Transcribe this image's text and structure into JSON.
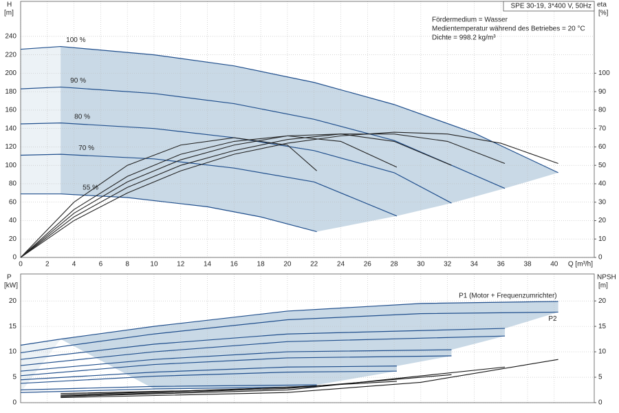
{
  "chart_data": [
    {
      "type": "line",
      "y_label": "H",
      "y_unit": "[m]",
      "y2_label": "eta",
      "y2_unit": "[%]",
      "x_label": "Q [m³/h]",
      "annotations": [
        "SPE 30-19, 3*400 V, 50Hz",
        "Fördermedium = Wasser",
        "Medientemperatur während des Betriebes = 20 °C",
        "Dichte = 998.2 kg/m³"
      ],
      "xlim": [
        0,
        43
      ],
      "xticks": [
        0,
        2,
        4,
        6,
        8,
        10,
        12,
        14,
        16,
        18,
        20,
        22,
        24,
        26,
        28,
        30,
        32,
        34,
        36,
        38,
        40
      ],
      "ylim": [
        0,
        278
      ],
      "yticks": [
        0,
        20,
        40,
        60,
        80,
        100,
        120,
        140,
        160,
        180,
        200,
        220,
        240
      ],
      "y2lim": [
        0,
        139
      ],
      "y2ticks": [
        0,
        10,
        20,
        30,
        40,
        50,
        60,
        70,
        80,
        90,
        100
      ],
      "grid": true,
      "fill_color": "#c9d9e6",
      "series": [
        {
          "name": "100 %",
          "color": "#1f4e8c",
          "x": [
            0,
            3,
            10,
            16,
            22,
            28,
            34,
            40.3
          ],
          "values": [
            226,
            229,
            220,
            208,
            190,
            166,
            135,
            92
          ]
        },
        {
          "name": "90 %",
          "color": "#1f4e8c",
          "x": [
            0,
            3,
            10,
            16,
            22,
            28,
            36.3
          ],
          "values": [
            183,
            185,
            178,
            167,
            150,
            127,
            75
          ]
        },
        {
          "name": "80 %",
          "color": "#1f4e8c",
          "x": [
            0,
            3,
            10,
            16,
            22,
            28,
            32.3
          ],
          "values": [
            145,
            146,
            140,
            130,
            116,
            92,
            59
          ]
        },
        {
          "name": "70 %",
          "color": "#1f4e8c",
          "x": [
            0,
            3,
            10,
            16,
            22,
            28.2
          ],
          "values": [
            111,
            112,
            107,
            97,
            82,
            45
          ]
        },
        {
          "name": "55 %",
          "color": "#1f4e8c",
          "x": [
            0,
            3,
            8,
            14,
            18,
            22.2
          ],
          "values": [
            69,
            69,
            65,
            55,
            44,
            28
          ]
        },
        {
          "axis": "y2",
          "color": "#222222",
          "x": [
            0,
            4,
            8,
            12,
            16,
            20,
            24,
            28,
            32,
            36,
            40.3
          ],
          "values": [
            0,
            20,
            35,
            47,
            56,
            62,
            66,
            68,
            67,
            62,
            51
          ]
        },
        {
          "axis": "y2",
          "color": "#222222",
          "x": [
            0,
            4,
            8,
            12,
            16,
            20,
            24,
            28,
            32,
            36.3
          ],
          "values": [
            0,
            22,
            38,
            50,
            58,
            64,
            67,
            67,
            63,
            51
          ]
        },
        {
          "axis": "y2",
          "color": "#222222",
          "x": [
            0,
            4,
            8,
            12,
            16,
            20,
            24,
            28,
            32.3
          ],
          "values": [
            0,
            24,
            41,
            53,
            61,
            66,
            67,
            63,
            50
          ]
        },
        {
          "axis": "y2",
          "color": "#222222",
          "x": [
            0,
            4,
            8,
            12,
            16,
            20,
            24,
            28.2
          ],
          "values": [
            0,
            26,
            44,
            56,
            63,
            66,
            63,
            49
          ]
        },
        {
          "axis": "y2",
          "color": "#222222",
          "x": [
            0,
            4,
            8,
            12,
            16,
            20,
            22.2
          ],
          "values": [
            0,
            30,
            50,
            61,
            65,
            61,
            47
          ]
        }
      ]
    },
    {
      "type": "line",
      "y_label": "P",
      "y_unit": "[kW]",
      "y2_label": "NPSH",
      "y2_unit": "[m]",
      "xlim": [
        0,
        43
      ],
      "xticks": [
        0,
        2,
        4,
        6,
        8,
        10,
        12,
        14,
        16,
        18,
        20,
        22,
        24,
        26,
        28,
        30,
        32,
        34,
        36,
        38,
        40
      ],
      "ylim": [
        0,
        25.3
      ],
      "yticks": [
        0,
        5,
        10,
        15,
        20
      ],
      "y2lim": [
        0,
        25.3
      ],
      "y2ticks": [
        0,
        5,
        10,
        15,
        20
      ],
      "grid": true,
      "fill_color": "#c9d9e6",
      "series": [
        {
          "name": "P1 (Motor + Frequenzumrichter)",
          "color": "#1f4e8c",
          "x": [
            0,
            3,
            10,
            20,
            30,
            40.3
          ],
          "values": [
            11.3,
            12.5,
            15,
            18,
            19.5,
            19.9
          ]
        },
        {
          "name": "P2",
          "color": "#1f4e8c",
          "x": [
            0,
            3,
            10,
            20,
            30,
            40.3
          ],
          "values": [
            9.8,
            11,
            13.5,
            16.3,
            17.5,
            17.8
          ]
        },
        {
          "color": "#1f4e8c",
          "x": [
            0,
            10,
            20,
            36.3
          ],
          "values": [
            8.5,
            11.5,
            13.5,
            14.6
          ]
        },
        {
          "color": "#1f4e8c",
          "x": [
            0,
            10,
            20,
            36.3
          ],
          "values": [
            7.3,
            10,
            12,
            13.1
          ]
        },
        {
          "color": "#1f4e8c",
          "x": [
            0,
            10,
            20,
            32.3
          ],
          "values": [
            6.2,
            8.5,
            10,
            10.4
          ]
        },
        {
          "color": "#1f4e8c",
          "x": [
            0,
            10,
            20,
            32.3
          ],
          "values": [
            5.3,
            7.5,
            8.8,
            9.2
          ]
        },
        {
          "color": "#1f4e8c",
          "x": [
            0,
            10,
            20,
            28.2
          ],
          "values": [
            4.5,
            6,
            7,
            7.2
          ]
        },
        {
          "color": "#1f4e8c",
          "x": [
            0,
            10,
            20,
            28.2
          ],
          "values": [
            3.8,
            5.2,
            6,
            6.2
          ]
        },
        {
          "color": "#1f4e8c",
          "x": [
            0,
            10,
            22.2
          ],
          "values": [
            2.5,
            3.2,
            3.5
          ]
        },
        {
          "color": "#1f4e8c",
          "x": [
            0,
            10,
            22.2
          ],
          "values": [
            2,
            2.7,
            3.1
          ]
        },
        {
          "axis": "y2",
          "color": "#111111",
          "x": [
            3,
            20,
            30,
            40.3
          ],
          "values": [
            1,
            2,
            4,
            8.5
          ]
        },
        {
          "axis": "y2",
          "color": "#111111",
          "x": [
            3,
            20,
            36.3
          ],
          "values": [
            1.2,
            2.5,
            7
          ]
        },
        {
          "axis": "y2",
          "color": "#111111",
          "x": [
            3,
            20,
            32.3
          ],
          "values": [
            1.3,
            2.8,
            5.5
          ]
        },
        {
          "axis": "y2",
          "color": "#111111",
          "x": [
            3,
            20,
            28.2
          ],
          "values": [
            1.5,
            3,
            4.2
          ]
        },
        {
          "axis": "y2",
          "color": "#111111",
          "x": [
            3,
            15,
            22.2
          ],
          "values": [
            1.8,
            2.5,
            3.3
          ]
        }
      ]
    }
  ]
}
